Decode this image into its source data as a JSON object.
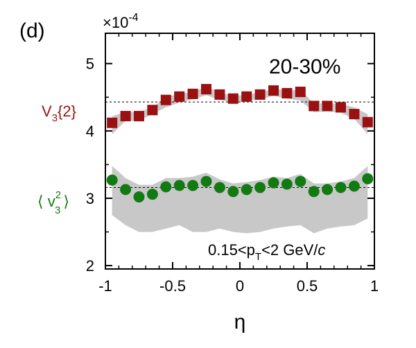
{
  "chart_data": {
    "type": "scatter",
    "panel_label": "(d)",
    "multiplier_label": "×10",
    "multiplier_exponent": "-4",
    "centrality_label": "20-30%",
    "kinematic_label_parts": [
      "0.15<p",
      "T",
      "<2 GeV/",
      "c"
    ],
    "xlabel": "η",
    "xlim": [
      -1,
      1
    ],
    "ylim": [
      1.95,
      5.45
    ],
    "x_ticks": [
      -1,
      -0.5,
      0,
      0.5,
      1
    ],
    "x_tick_labels": [
      "-1",
      "-0.5",
      "0",
      "0.5",
      "1"
    ],
    "y_ticks": [
      2,
      3,
      4,
      5
    ],
    "y_tick_labels": [
      "2",
      "3",
      "4",
      "5"
    ],
    "grid": false,
    "x": [
      -0.95,
      -0.85,
      -0.75,
      -0.65,
      -0.55,
      -0.45,
      -0.35,
      -0.25,
      -0.15,
      -0.05,
      0.05,
      0.15,
      0.25,
      0.35,
      0.45,
      0.55,
      0.65,
      0.75,
      0.85,
      0.95
    ],
    "series": [
      {
        "name": "V3{2}",
        "label_main": "V",
        "label_sub": "3",
        "label_tail": "{2}",
        "marker": "square",
        "color": "#9b1111",
        "values": [
          4.12,
          4.22,
          4.22,
          4.31,
          4.46,
          4.51,
          4.55,
          4.62,
          4.54,
          4.48,
          4.51,
          4.54,
          4.6,
          4.56,
          4.58,
          4.37,
          4.37,
          4.35,
          4.25,
          4.13
        ],
        "band_upper": [
          4.22,
          4.28,
          4.28,
          4.35,
          4.5,
          4.55,
          4.58,
          4.66,
          4.57,
          4.52,
          4.54,
          4.57,
          4.63,
          4.6,
          4.61,
          4.41,
          4.41,
          4.4,
          4.35,
          4.25
        ],
        "band_lower": [
          3.95,
          4.15,
          4.15,
          4.25,
          4.35,
          4.42,
          4.47,
          4.53,
          4.46,
          4.42,
          4.45,
          4.47,
          4.52,
          4.48,
          4.45,
          4.28,
          4.29,
          4.27,
          4.18,
          3.95
        ],
        "mean_line": 4.43
      },
      {
        "name": "⟨v3²⟩",
        "label_open": "⟨ v",
        "label_sub": "3",
        "label_sup": "2",
        "label_close": "⟩",
        "marker": "circle",
        "color": "#127a12",
        "values": [
          3.27,
          3.13,
          3.02,
          3.06,
          3.17,
          3.19,
          3.19,
          3.25,
          3.16,
          3.1,
          3.13,
          3.16,
          3.23,
          3.21,
          3.25,
          3.1,
          3.13,
          3.16,
          3.18,
          3.29
        ],
        "band_upper": [
          3.48,
          3.3,
          3.2,
          3.2,
          3.3,
          3.3,
          3.32,
          3.38,
          3.28,
          3.22,
          3.24,
          3.27,
          3.32,
          3.3,
          3.36,
          3.22,
          3.22,
          3.25,
          3.3,
          3.48
        ],
        "band_lower": [
          2.75,
          2.6,
          2.5,
          2.5,
          2.55,
          2.6,
          2.5,
          2.5,
          2.55,
          2.5,
          2.48,
          2.5,
          2.55,
          2.58,
          2.6,
          2.48,
          2.55,
          2.58,
          2.6,
          2.7
        ],
        "mean_line": 3.16
      }
    ]
  }
}
